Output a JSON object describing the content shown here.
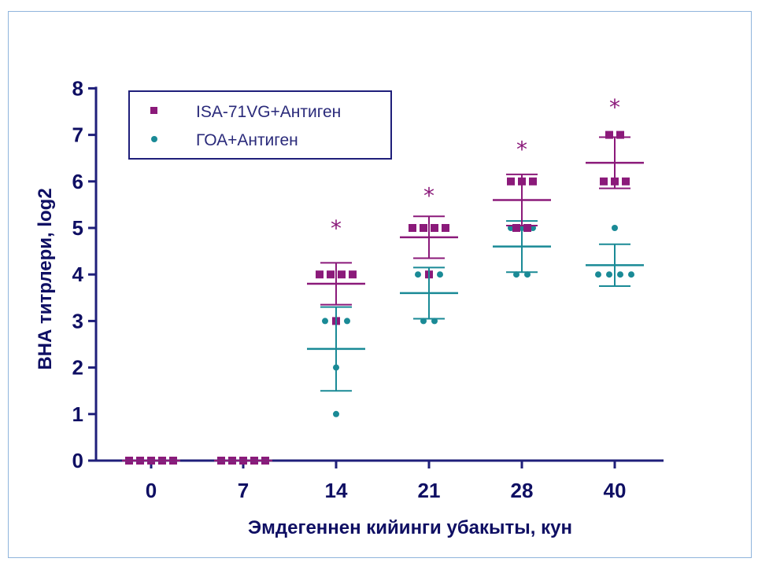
{
  "chart_data": {
    "type": "scatter",
    "title": "",
    "xlabel": "Эмдегеннен кийинги убакыты, кун",
    "ylabel": "ВНА титрлери, log2",
    "ylim": [
      0,
      8
    ],
    "yticks": [
      0,
      1,
      2,
      3,
      4,
      5,
      6,
      7,
      8
    ],
    "categories": [
      "0",
      "7",
      "14",
      "21",
      "28",
      "40"
    ],
    "legend_position": "top-left",
    "series": [
      {
        "name": "ISA-71VG+Антиген",
        "marker": "square",
        "color": "#8b1a7a",
        "points": [
          [
            0,
            0
          ],
          [
            0,
            0
          ],
          [
            0,
            0
          ],
          [
            0,
            0
          ],
          [
            0,
            0
          ],
          [
            0,
            0
          ],
          [
            0,
            0
          ],
          [
            0,
            0
          ],
          [
            0,
            0
          ],
          [
            0,
            0
          ],
          [
            4,
            4
          ],
          [
            4,
            4
          ],
          [
            4,
            4
          ],
          [
            3,
            4
          ],
          [
            5,
            5
          ],
          [
            5,
            5
          ],
          [
            5,
            5
          ],
          [
            4,
            5
          ],
          [
            6,
            6
          ],
          [
            6,
            6
          ],
          [
            5,
            6
          ],
          [
            7,
            7
          ],
          [
            6,
            7
          ],
          [
            6,
            7
          ]
        ],
        "points_by_category": [
          [
            0,
            0,
            0,
            0,
            0
          ],
          [
            0,
            0,
            0,
            0,
            0
          ],
          [
            4,
            4,
            4,
            4,
            3
          ],
          [
            5,
            5,
            5,
            5,
            4
          ],
          [
            6,
            6,
            6,
            5,
            5
          ],
          [
            7,
            7,
            6,
            6,
            6
          ]
        ],
        "mean": [
          0,
          0,
          3.8,
          4.8,
          5.6,
          6.4
        ],
        "sd": [
          0,
          0,
          0.45,
          0.45,
          0.55,
          0.55
        ]
      },
      {
        "name": "ГОА+Антиген",
        "marker": "circle",
        "color": "#1a8a96",
        "points_by_category": [
          [
            0,
            0,
            0,
            0,
            0
          ],
          [
            0,
            0,
            0,
            0,
            0
          ],
          [
            3,
            3,
            3,
            2,
            1
          ],
          [
            4,
            4,
            4,
            3,
            3
          ],
          [
            5,
            5,
            5,
            4,
            4
          ],
          [
            5,
            4,
            4,
            4,
            4
          ]
        ],
        "mean": [
          0,
          0,
          2.4,
          3.6,
          4.6,
          4.2
        ],
        "sd": [
          0,
          0,
          0.9,
          0.55,
          0.55,
          0.45
        ]
      }
    ],
    "annotations": [
      {
        "category": "14",
        "text": "*",
        "y": 5.1
      },
      {
        "category": "21",
        "text": "*",
        "y": 5.8
      },
      {
        "category": "28",
        "text": "*",
        "y": 6.8
      },
      {
        "category": "40",
        "text": "*",
        "y": 7.7
      }
    ],
    "grid": false
  }
}
